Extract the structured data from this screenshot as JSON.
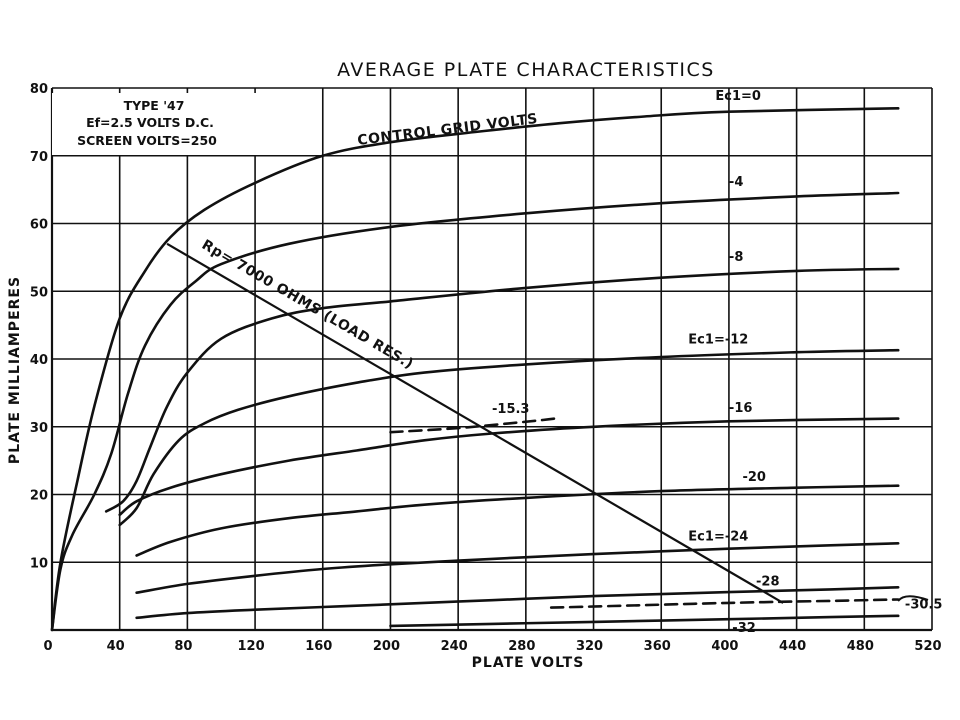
{
  "chart_data": {
    "type": "line",
    "title": "AVERAGE PLATE CHARACTERISTICS",
    "xlabel": "PLATE VOLTS",
    "ylabel": "PLATE MILLIAMPERES",
    "xlim": [
      0,
      520
    ],
    "ylim": [
      0,
      80
    ],
    "x_ticks": [
      0,
      40,
      80,
      120,
      160,
      200,
      240,
      280,
      320,
      360,
      400,
      440,
      480,
      520
    ],
    "y_ticks": [
      10,
      20,
      30,
      40,
      50,
      60,
      70,
      80
    ],
    "grid": true,
    "info_box": [
      "TYPE '47",
      "Ef=2.5 VOLTS D.C.",
      "SCREEN VOLTS=250"
    ],
    "annotation": "CONTROL GRID VOLTS",
    "load_line": {
      "label": "Rp= 7000 OHMS (LOAD RES.)",
      "from": [
        68,
        57
      ],
      "to": [
        432,
        4
      ]
    },
    "series": [
      {
        "name": "Ec1=0",
        "label_prefix": "Ec1",
        "label_value": "=0",
        "points": [
          [
            0,
            0
          ],
          [
            5,
            10
          ],
          [
            15,
            22
          ],
          [
            25,
            33
          ],
          [
            40,
            46
          ],
          [
            55,
            53
          ],
          [
            70,
            58
          ],
          [
            90,
            62
          ],
          [
            120,
            66
          ],
          [
            160,
            70
          ],
          [
            200,
            72
          ],
          [
            250,
            73.5
          ],
          [
            300,
            74.8
          ],
          [
            350,
            75.8
          ],
          [
            400,
            76.5
          ],
          [
            500,
            77
          ]
        ]
      },
      {
        "name": "-4",
        "label_value": "-4",
        "points": [
          [
            0,
            0
          ],
          [
            5,
            9
          ],
          [
            12,
            14
          ],
          [
            25,
            20
          ],
          [
            35,
            26
          ],
          [
            45,
            35
          ],
          [
            55,
            42
          ],
          [
            70,
            48
          ],
          [
            85,
            51.5
          ],
          [
            100,
            54
          ],
          [
            140,
            57
          ],
          [
            200,
            59.5
          ],
          [
            280,
            61.5
          ],
          [
            360,
            63
          ],
          [
            440,
            64
          ],
          [
            500,
            64.5
          ]
        ]
      },
      {
        "name": "-8",
        "label_value": "-8",
        "points": [
          [
            32,
            17.5
          ],
          [
            42,
            19
          ],
          [
            50,
            22
          ],
          [
            58,
            27
          ],
          [
            68,
            33
          ],
          [
            80,
            38
          ],
          [
            100,
            43
          ],
          [
            130,
            46
          ],
          [
            160,
            47.5
          ],
          [
            200,
            48.5
          ],
          [
            280,
            50.5
          ],
          [
            360,
            52
          ],
          [
            440,
            53
          ],
          [
            500,
            53.3
          ]
        ]
      },
      {
        "name": "Ec1=-12",
        "label_prefix": "Ec1",
        "label_value": "=-12",
        "points": [
          [
            40,
            15.5
          ],
          [
            50,
            18
          ],
          [
            60,
            23
          ],
          [
            75,
            28
          ],
          [
            90,
            30.5
          ],
          [
            110,
            32.5
          ],
          [
            140,
            34.5
          ],
          [
            180,
            36.5
          ],
          [
            220,
            38
          ],
          [
            280,
            39.2
          ],
          [
            360,
            40.3
          ],
          [
            440,
            41
          ],
          [
            500,
            41.3
          ]
        ]
      },
      {
        "name": "-16",
        "label_value": "-16",
        "points": [
          [
            40,
            17
          ],
          [
            50,
            19
          ],
          [
            70,
            21
          ],
          [
            100,
            23
          ],
          [
            140,
            25
          ],
          [
            180,
            26.5
          ],
          [
            220,
            28
          ],
          [
            260,
            29
          ],
          [
            320,
            30
          ],
          [
            400,
            30.8
          ],
          [
            500,
            31.2
          ]
        ]
      },
      {
        "name": "-20",
        "label_value": "-20",
        "points": [
          [
            50,
            11
          ],
          [
            70,
            13
          ],
          [
            100,
            15
          ],
          [
            140,
            16.5
          ],
          [
            180,
            17.5
          ],
          [
            220,
            18.5
          ],
          [
            280,
            19.5
          ],
          [
            360,
            20.5
          ],
          [
            440,
            21
          ],
          [
            500,
            21.3
          ]
        ]
      },
      {
        "name": "Ec1=-24",
        "label_prefix": "Ec1",
        "label_value": "=-24",
        "points": [
          [
            50,
            5.5
          ],
          [
            80,
            6.8
          ],
          [
            120,
            8
          ],
          [
            160,
            9
          ],
          [
            200,
            9.7
          ],
          [
            260,
            10.5
          ],
          [
            320,
            11.2
          ],
          [
            400,
            12
          ],
          [
            460,
            12.5
          ],
          [
            500,
            12.8
          ]
        ]
      },
      {
        "name": "-28",
        "label_value": "-28",
        "points": [
          [
            50,
            1.8
          ],
          [
            80,
            2.5
          ],
          [
            120,
            3
          ],
          [
            160,
            3.4
          ],
          [
            200,
            3.8
          ],
          [
            260,
            4.4
          ],
          [
            320,
            5
          ],
          [
            400,
            5.6
          ],
          [
            460,
            6
          ],
          [
            500,
            6.3
          ]
        ]
      },
      {
        "name": "-32",
        "label_value": "-32",
        "points": [
          [
            200,
            0.6
          ],
          [
            260,
            0.9
          ],
          [
            320,
            1.2
          ],
          [
            400,
            1.6
          ],
          [
            460,
            1.9
          ],
          [
            500,
            2.1
          ]
        ]
      },
      {
        "name": "-15.3",
        "label_value": "-15.3",
        "dashed": true,
        "points": [
          [
            200,
            29.2
          ],
          [
            240,
            29.8
          ],
          [
            270,
            30.5
          ],
          [
            290,
            31
          ],
          [
            300,
            31.3
          ]
        ]
      },
      {
        "name": "-30.5",
        "label_value": "-30.5",
        "dashed": true,
        "points": [
          [
            295,
            3.3
          ],
          [
            340,
            3.6
          ],
          [
            400,
            4
          ],
          [
            460,
            4.3
          ],
          [
            500,
            4.5
          ]
        ]
      }
    ]
  }
}
